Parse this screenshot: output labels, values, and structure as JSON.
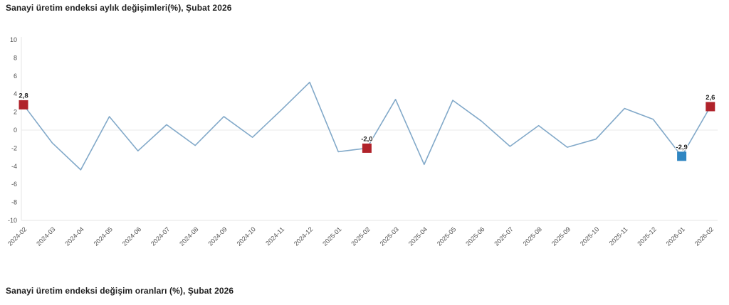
{
  "header": {
    "title": "Sanayi üretim endeksi aylık değişimleri(%), Şubat 2026"
  },
  "footer": {
    "title": "Sanayi üretim endeksi değişim oranları (%), Şubat 2026"
  },
  "chart_data": {
    "type": "line",
    "title": "Sanayi üretim endeksi aylık değişimleri(%), Şubat 2026",
    "categories": [
      "2024-02",
      "2024-03",
      "2024-04",
      "2024-05",
      "2024-06",
      "2024-07",
      "2024-08",
      "2024-09",
      "2024-10",
      "2024-11",
      "2024-12",
      "2025-01",
      "2025-02",
      "2025-03",
      "2025-04",
      "2025-05",
      "2025-06",
      "2025-07",
      "2025-08",
      "2025-09",
      "2025-10",
      "2025-11",
      "2025-12",
      "2026-01",
      "2026-02"
    ],
    "values": [
      2.8,
      -1.4,
      -4.4,
      1.5,
      -2.3,
      0.6,
      -1.7,
      1.5,
      -0.8,
      2.2,
      5.3,
      -2.4,
      -2.0,
      3.4,
      -3.8,
      3.3,
      1.0,
      -1.8,
      0.5,
      -1.9,
      -1.0,
      2.4,
      1.2,
      -2.9,
      2.6
    ],
    "ylim": [
      -10,
      10
    ],
    "ytick_step": 2,
    "ytick_labels": [
      "10",
      "8",
      "6",
      "4",
      "2",
      "0",
      "-2",
      "-4",
      "-6",
      "-8",
      "-10"
    ],
    "grid": "zero-line-only",
    "legend": "none",
    "xlabel": "",
    "ylabel": "",
    "colors": {
      "line": "#82a9c9",
      "highlight_red": "#b0222a",
      "highlight_blue": "#2f86c2",
      "axis": "#e6e6e6",
      "tick_text": "#4d4d4d",
      "point_label_text": "#1f1f1f"
    },
    "point_labels": [
      {
        "index": 0,
        "category": "2024-02",
        "text": "2,8",
        "marker": "red"
      },
      {
        "index": 12,
        "category": "2025-02",
        "text": "-2,0",
        "marker": "red"
      },
      {
        "index": 23,
        "category": "2026-01",
        "text": "-2,9",
        "marker": "blue"
      },
      {
        "index": 24,
        "category": "2026-02",
        "text": "2,6",
        "marker": "red"
      }
    ]
  }
}
